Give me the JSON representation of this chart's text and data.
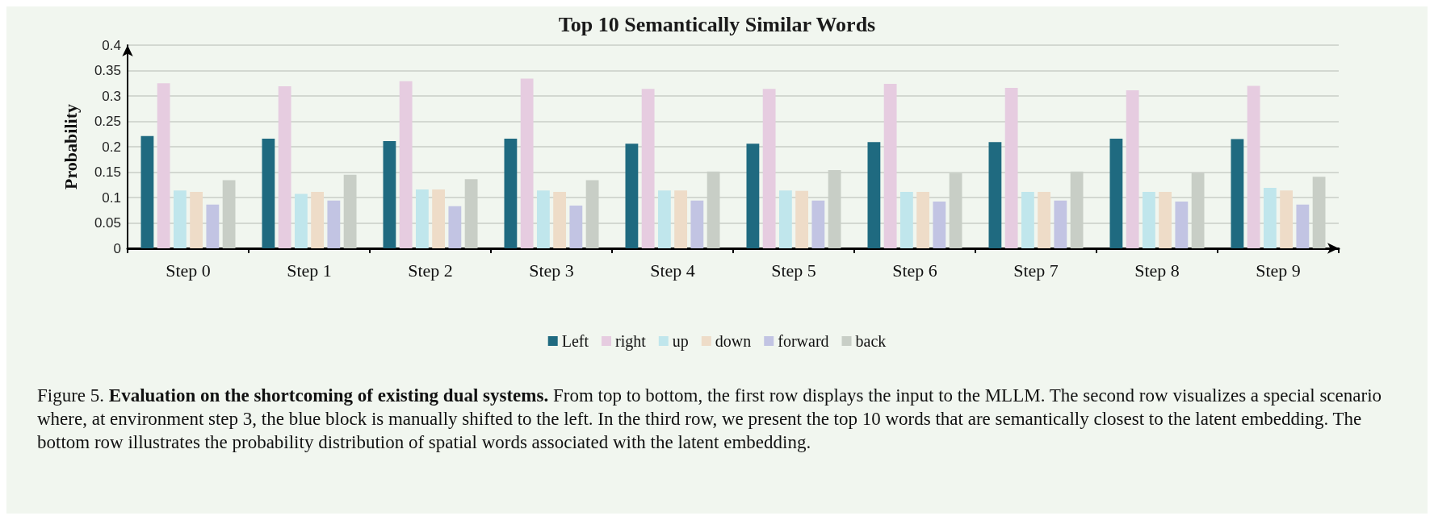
{
  "chart_data": {
    "type": "bar",
    "title": "Top 10 Semantically Similar Words",
    "ylabel": "Probability",
    "categories": [
      "Step 0",
      "Step 1",
      "Step 2",
      "Step 3",
      "Step 4",
      "Step 5",
      "Step 6",
      "Step 7",
      "Step 8",
      "Step 9"
    ],
    "series": [
      {
        "name": "Left",
        "color": "#1f6a80",
        "values": [
          0.221,
          0.216,
          0.211,
          0.216,
          0.206,
          0.206,
          0.209,
          0.209,
          0.216,
          0.215
        ]
      },
      {
        "name": "right",
        "color": "#e6cce0",
        "values": [
          0.325,
          0.319,
          0.329,
          0.334,
          0.314,
          0.314,
          0.324,
          0.316,
          0.311,
          0.32
        ]
      },
      {
        "name": "up",
        "color": "#c0e6ec",
        "values": [
          0.114,
          0.107,
          0.116,
          0.114,
          0.114,
          0.114,
          0.111,
          0.111,
          0.111,
          0.119
        ]
      },
      {
        "name": "down",
        "color": "#eedcc8",
        "values": [
          0.111,
          0.111,
          0.116,
          0.111,
          0.114,
          0.113,
          0.111,
          0.111,
          0.111,
          0.114
        ]
      },
      {
        "name": "forward",
        "color": "#c2c4e3",
        "values": [
          0.086,
          0.094,
          0.083,
          0.084,
          0.094,
          0.094,
          0.092,
          0.094,
          0.092,
          0.086
        ]
      },
      {
        "name": "back",
        "color": "#c8cec6",
        "values": [
          0.134,
          0.145,
          0.136,
          0.134,
          0.151,
          0.154,
          0.148,
          0.151,
          0.149,
          0.141
        ]
      }
    ],
    "ylim": [
      0,
      0.4
    ],
    "yticks": [
      0,
      0.05,
      0.1,
      0.15,
      0.2,
      0.25,
      0.3,
      0.35,
      0.4
    ],
    "grid": "y",
    "legend": "bottom",
    "annotations": [
      "Figure 5.",
      "Evaluation on the shortcoming of existing dual systems.",
      "From top to bottom, the first row displays the input to the MLLM. The second row visualizes a special scenario where, at environment step 3, the blue block is manually shifted to the left. In the third row, we present the top 10 words that are semantically closest to the latent embedding. The bottom row illustrates the probability distribution of spatial words associated with the latent embedding."
    ]
  }
}
